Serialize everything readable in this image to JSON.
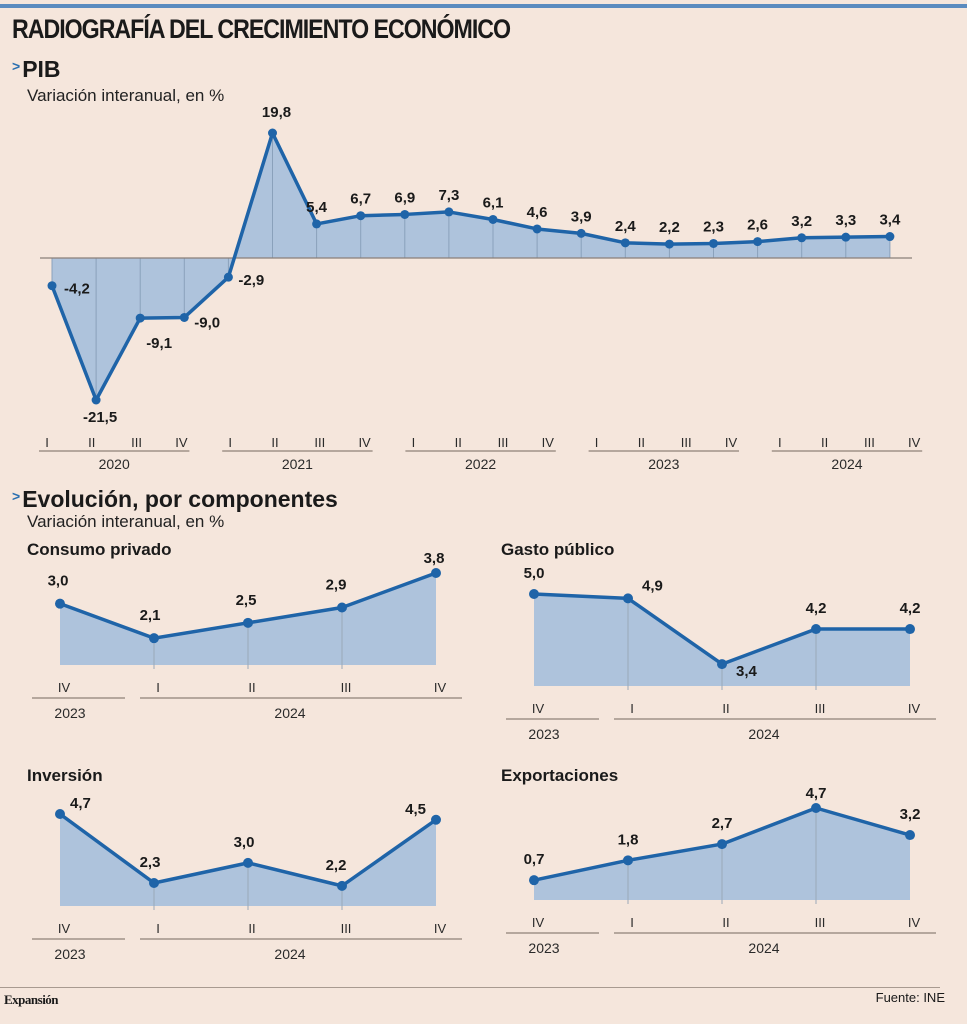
{
  "header": {
    "title": "RADIOGRAFÍA DEL CRECIMIENTO ECONÓMICO"
  },
  "sections": {
    "pib": {
      "title": "PIB",
      "subtitle": "Variación interanual, en %"
    },
    "components": {
      "title": "Evolución, por componentes",
      "subtitle": "Variación interanual, en %"
    }
  },
  "icons": {
    "section_marker": "chevron-right-icon"
  },
  "colors": {
    "line": "#1f64a8",
    "fill": "#aec3dc",
    "accent_bar": "#5b8bbf",
    "background": "#f5e6dc"
  },
  "footer": {
    "brand": "Expansión",
    "source": "Fuente: INE"
  },
  "chart_data": [
    {
      "id": "pib",
      "type": "area",
      "title": "PIB",
      "subtitle": "Variación interanual, en %",
      "quarters": [
        "I",
        "II",
        "III",
        "IV",
        "I",
        "II",
        "III",
        "IV",
        "I",
        "II",
        "III",
        "IV",
        "I",
        "II",
        "III",
        "IV",
        "I",
        "II",
        "III",
        "IV"
      ],
      "years": [
        "2020",
        "2021",
        "2022",
        "2023",
        "2024"
      ],
      "values": [
        -4.2,
        -21.5,
        -9.1,
        -9.0,
        -2.9,
        19.8,
        5.4,
        6.7,
        6.9,
        7.3,
        6.1,
        4.6,
        3.9,
        2.4,
        2.2,
        2.3,
        2.6,
        3.2,
        3.3,
        3.4
      ],
      "labels": [
        "-4,2",
        "-21,5",
        "-9,1",
        "-9,0",
        "-2,9",
        "19,8",
        "5,4",
        "6,7",
        "6,9",
        "7,3",
        "6,1",
        "4,6",
        "3,9",
        "2,4",
        "2,2",
        "2,3",
        "2,6",
        "3,2",
        "3,3",
        "3,4"
      ],
      "ylim": [
        -21.5,
        19.8
      ],
      "grid": false,
      "legend": "none"
    },
    {
      "id": "consumo",
      "type": "area",
      "title": "Consumo privado",
      "quarters": [
        "IV",
        "I",
        "II",
        "III",
        "IV"
      ],
      "years": [
        "2023",
        "2024"
      ],
      "values": [
        3.0,
        2.1,
        2.5,
        2.9,
        3.8
      ],
      "labels": [
        "3,0",
        "2,1",
        "2,5",
        "2,9",
        "3,8"
      ]
    },
    {
      "id": "gasto",
      "type": "area",
      "title": "Gasto público",
      "quarters": [
        "IV",
        "I",
        "II",
        "III",
        "IV"
      ],
      "years": [
        "2023",
        "2024"
      ],
      "values": [
        5.0,
        4.9,
        3.4,
        4.2,
        4.2
      ],
      "labels": [
        "5,0",
        "4,9",
        "3,4",
        "4,2",
        "4,2"
      ]
    },
    {
      "id": "inversion",
      "type": "area",
      "title": "Inversión",
      "quarters": [
        "IV",
        "I",
        "II",
        "III",
        "IV"
      ],
      "years": [
        "2023",
        "2024"
      ],
      "values": [
        4.7,
        2.3,
        3.0,
        2.2,
        4.5
      ],
      "labels": [
        "4,7",
        "2,3",
        "3,0",
        "2,2",
        "4,5"
      ]
    },
    {
      "id": "exportaciones",
      "type": "area",
      "title": "Exportaciones",
      "quarters": [
        "IV",
        "I",
        "II",
        "III",
        "IV"
      ],
      "years": [
        "2023",
        "2024"
      ],
      "values": [
        0.7,
        1.8,
        2.7,
        4.7,
        3.2
      ],
      "labels": [
        "0,7",
        "1,8",
        "2,7",
        "4,7",
        "3,2"
      ]
    }
  ]
}
